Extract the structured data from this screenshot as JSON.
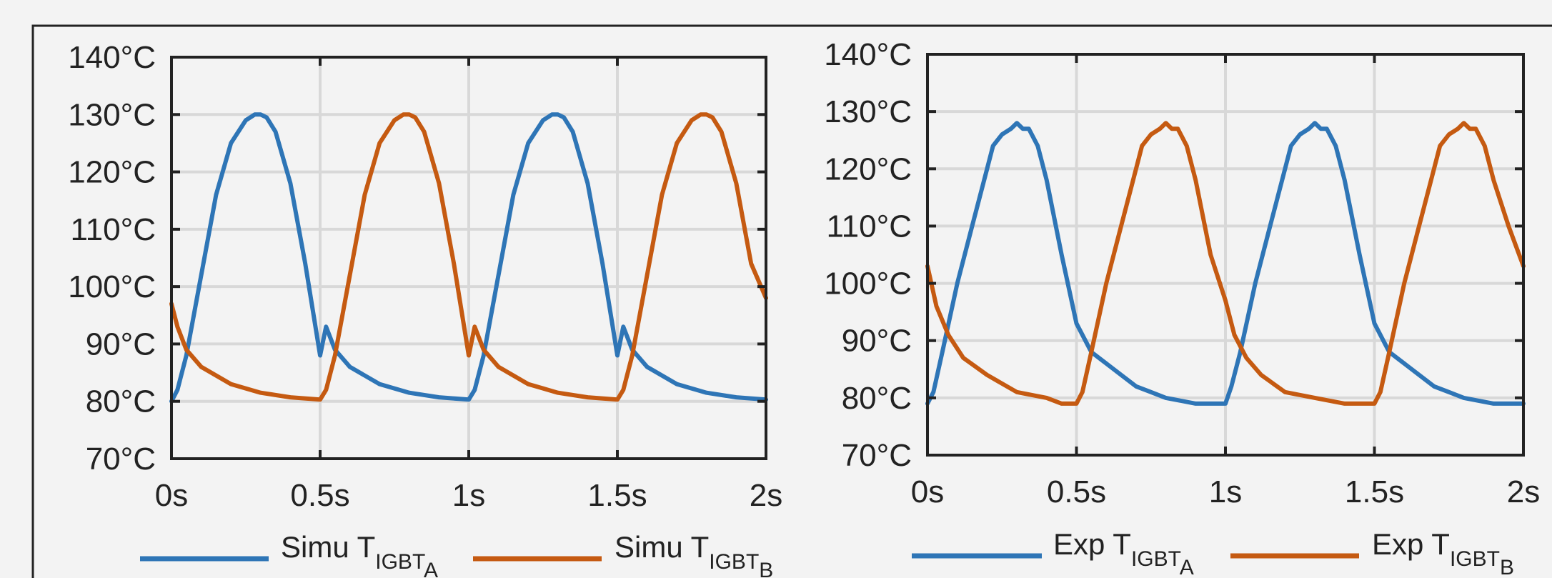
{
  "colors": {
    "background": "#f3f3f3",
    "frame": "#222222",
    "grid": "#d8d8d8",
    "series_a": "#2e75b6",
    "series_b": "#c55a11"
  },
  "chart_data": [
    {
      "type": "line",
      "panel": "left",
      "xlim": [
        0,
        2
      ],
      "ylim": [
        70,
        140
      ],
      "x_ticks": [
        0,
        0.5,
        1,
        1.5,
        2
      ],
      "x_tick_labels": [
        "0s",
        "0.5s",
        "1s",
        "1.5s",
        "2s"
      ],
      "y_ticks": [
        70,
        80,
        90,
        100,
        110,
        120,
        130,
        140
      ],
      "y_tick_labels": [
        "70°C",
        "80°C",
        "90°C",
        "100°C",
        "110°C",
        "120°C",
        "130°C",
        "140°C"
      ],
      "grid": true,
      "legend_position": "bottom",
      "series": [
        {
          "name": "Simu T",
          "subscript": "IGBT",
          "subsubscript": "A",
          "color": "#2e75b6",
          "x": [
            0,
            0.02,
            0.05,
            0.1,
            0.15,
            0.2,
            0.25,
            0.28,
            0.3,
            0.32,
            0.35,
            0.4,
            0.45,
            0.5,
            0.52,
            0.55,
            0.6,
            0.7,
            0.8,
            0.9,
            1.0,
            1.02,
            1.05,
            1.1,
            1.15,
            1.2,
            1.25,
            1.28,
            1.3,
            1.32,
            1.35,
            1.4,
            1.45,
            1.5,
            1.52,
            1.55,
            1.6,
            1.7,
            1.8,
            1.9,
            2.0
          ],
          "values": [
            80,
            82,
            88,
            102,
            116,
            125,
            129,
            130,
            130,
            129.5,
            127,
            118,
            104,
            88,
            93,
            89,
            86,
            83,
            81.5,
            80.7,
            80.3,
            82,
            88,
            102,
            116,
            125,
            129,
            130,
            130,
            129.5,
            127,
            118,
            104,
            88,
            93,
            89,
            86,
            83,
            81.5,
            80.7,
            80.3
          ]
        },
        {
          "name": "Simu T",
          "subscript": "IGBT",
          "subsubscript": "B",
          "color": "#c55a11",
          "x": [
            0,
            0.02,
            0.05,
            0.1,
            0.2,
            0.3,
            0.4,
            0.5,
            0.52,
            0.55,
            0.6,
            0.65,
            0.7,
            0.75,
            0.78,
            0.8,
            0.82,
            0.85,
            0.9,
            0.95,
            1.0,
            1.02,
            1.05,
            1.1,
            1.2,
            1.3,
            1.4,
            1.5,
            1.52,
            1.55,
            1.6,
            1.65,
            1.7,
            1.75,
            1.78,
            1.8,
            1.82,
            1.85,
            1.9,
            1.95,
            2.0
          ],
          "values": [
            97,
            93,
            89,
            86,
            83,
            81.5,
            80.7,
            80.3,
            82,
            88,
            102,
            116,
            125,
            129,
            130,
            130,
            129.5,
            127,
            118,
            104,
            88,
            93,
            89,
            86,
            83,
            81.5,
            80.7,
            80.3,
            82,
            88,
            102,
            116,
            125,
            129,
            130,
            130,
            129.5,
            127,
            118,
            104,
            98
          ]
        }
      ]
    },
    {
      "type": "line",
      "panel": "right",
      "xlim": [
        0,
        2
      ],
      "ylim": [
        70,
        140
      ],
      "x_ticks": [
        0,
        0.5,
        1,
        1.5,
        2
      ],
      "x_tick_labels": [
        "0s",
        "0.5s",
        "1s",
        "1.5s",
        "2s"
      ],
      "y_ticks": [
        70,
        80,
        90,
        100,
        110,
        120,
        130,
        140
      ],
      "y_tick_labels": [
        "70°C",
        "80°C",
        "90°C",
        "100°C",
        "110°C",
        "120°C",
        "130°C",
        "140°C"
      ],
      "grid": true,
      "legend_position": "bottom",
      "series": [
        {
          "name": "Exp T",
          "subscript": "IGBT",
          "subsubscript": "A",
          "color": "#2e75b6",
          "x": [
            0,
            0.02,
            0.05,
            0.1,
            0.15,
            0.2,
            0.22,
            0.25,
            0.28,
            0.3,
            0.32,
            0.34,
            0.37,
            0.4,
            0.45,
            0.5,
            0.55,
            0.6,
            0.65,
            0.7,
            0.75,
            0.8,
            0.9,
            1.0,
            1.02,
            1.05,
            1.1,
            1.15,
            1.2,
            1.22,
            1.25,
            1.28,
            1.3,
            1.32,
            1.34,
            1.37,
            1.4,
            1.45,
            1.5,
            1.55,
            1.6,
            1.65,
            1.7,
            1.75,
            1.8,
            1.9,
            2.0
          ],
          "values": [
            79,
            81,
            88,
            100,
            110,
            120,
            124,
            126,
            127,
            128,
            127,
            127,
            124,
            118,
            105,
            93,
            88,
            86,
            84,
            82,
            81,
            80,
            79,
            79,
            82,
            88,
            100,
            110,
            120,
            124,
            126,
            127,
            128,
            127,
            127,
            124,
            118,
            105,
            93,
            88,
            86,
            84,
            82,
            81,
            80,
            79,
            79
          ]
        },
        {
          "name": "Exp T",
          "subscript": "IGBT",
          "subsubscript": "B",
          "color": "#c55a11",
          "x": [
            0,
            0.03,
            0.07,
            0.12,
            0.2,
            0.3,
            0.4,
            0.45,
            0.5,
            0.52,
            0.55,
            0.6,
            0.65,
            0.7,
            0.72,
            0.75,
            0.78,
            0.8,
            0.82,
            0.84,
            0.87,
            0.9,
            0.95,
            1.0,
            1.03,
            1.07,
            1.12,
            1.2,
            1.3,
            1.4,
            1.45,
            1.5,
            1.52,
            1.55,
            1.6,
            1.65,
            1.7,
            1.72,
            1.75,
            1.78,
            1.8,
            1.82,
            1.84,
            1.87,
            1.9,
            1.95,
            2.0
          ],
          "values": [
            103,
            96,
            91,
            87,
            84,
            81,
            80,
            79,
            79,
            81,
            88,
            100,
            110,
            120,
            124,
            126,
            127,
            128,
            127,
            127,
            124,
            118,
            105,
            97,
            91,
            87,
            84,
            81,
            80,
            79,
            79,
            79,
            81,
            88,
            100,
            110,
            120,
            124,
            126,
            127,
            128,
            127,
            127,
            124,
            118,
            110,
            103
          ]
        }
      ]
    }
  ]
}
